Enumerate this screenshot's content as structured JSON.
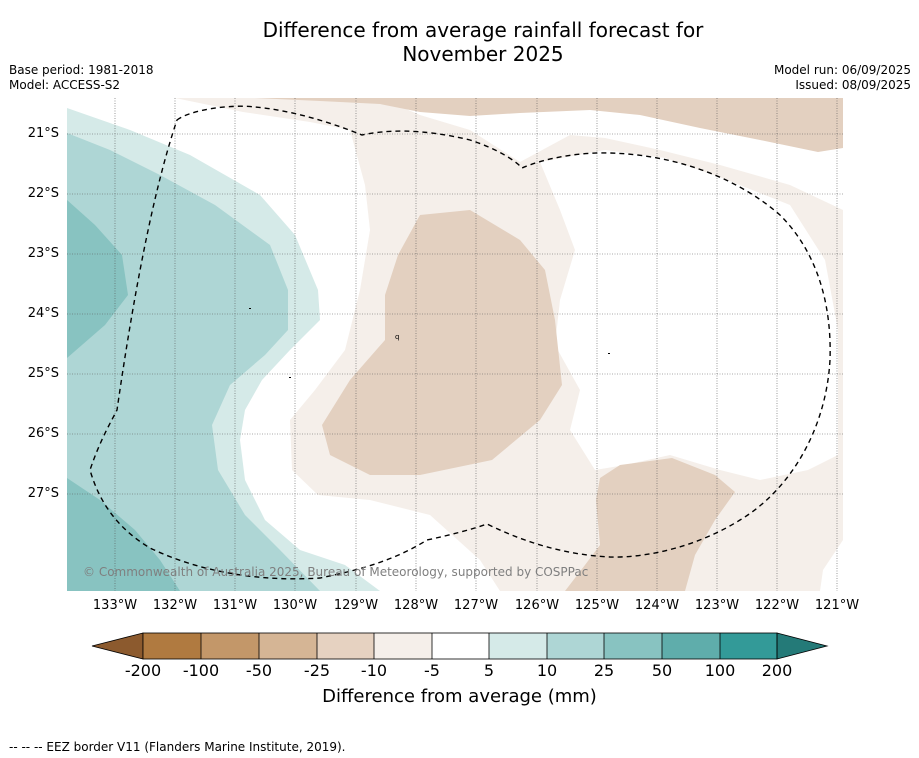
{
  "title": {
    "line1": "Difference from average rainfall forecast for",
    "line2": "November 2025"
  },
  "meta_left": {
    "base_period": "Base period: 1981-2018",
    "model": "Model: ACCESS-S2"
  },
  "meta_right": {
    "model_run": "Model run: 06/09/2025",
    "issued": "Issued: 08/09/2025"
  },
  "map": {
    "latitude_labels": [
      "21°S",
      "22°S",
      "23°S",
      "24°S",
      "25°S",
      "26°S",
      "27°S"
    ],
    "longitude_labels": [
      "133°W",
      "132°W",
      "131°W",
      "130°W",
      "129°W",
      "128°W",
      "127°W",
      "126°W",
      "125°W",
      "124°W",
      "123°W",
      "122°W",
      "121°W"
    ],
    "copyright": "© Commonwealth of Australia 2025, Bureau of Meteorology, supported by COSPPac",
    "colors": {
      "dry_10_25": "#e3d0c0",
      "dry_5_10": "#f5efea",
      "neutral": "#ffffff",
      "wet_5_10": "#d5eae8",
      "wet_10_25": "#aed6d5",
      "wet_25_50": "#88c3c1",
      "eez_border": "#000000",
      "grid": "#555555"
    }
  },
  "colorbar": {
    "title": "Difference from average (mm)",
    "ticks": [
      "-200",
      "-100",
      "-50",
      "-25",
      "-10",
      "-5",
      "5",
      "10",
      "25",
      "50",
      "100",
      "200"
    ],
    "colors": [
      "#8c5a2e",
      "#b07a40",
      "#c39769",
      "#d5b595",
      "#e6d2c1",
      "#f5efea",
      "#ffffff",
      "#d5eae8",
      "#aed6d5",
      "#88c3c1",
      "#5fadab",
      "#339a98",
      "#247a78"
    ]
  },
  "footer": "--  --  -- EEZ border V11 (Flanders Marine Institute, 2019)."
}
